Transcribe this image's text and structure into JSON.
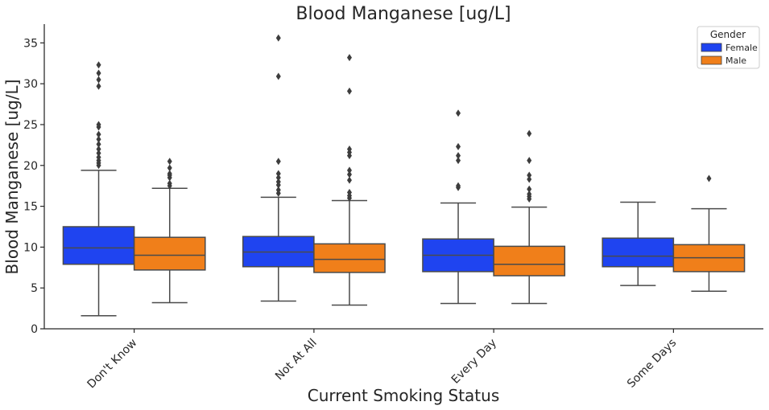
{
  "chart_data": {
    "type": "boxplot",
    "title": "Blood Manganese [ug/L]",
    "xlabel": "Current Smoking Status",
    "ylabel": "Blood Manganese [ug/L]",
    "ylim": [
      0,
      37.3
    ],
    "yticks": [
      0,
      5,
      10,
      15,
      20,
      25,
      30,
      35
    ],
    "categories": [
      "Don't Know",
      "Not At All",
      "Every Day",
      "Some Days"
    ],
    "legend": {
      "title": "Gender",
      "position": "top-right"
    },
    "series": [
      {
        "name": "Female",
        "color": "#1f44f0",
        "boxes": [
          {
            "whisker_low": 1.6,
            "q1": 7.9,
            "median": 9.9,
            "q3": 12.5,
            "whisker_high": 19.4,
            "outliers": [
              20.0,
              20.3,
              20.6,
              21.0,
              21.5,
              22.0,
              22.6,
              23.2,
              23.8,
              24.7,
              25.0,
              29.7,
              30.5,
              31.3,
              32.3
            ]
          },
          {
            "whisker_low": 3.4,
            "q1": 7.6,
            "median": 9.4,
            "q3": 11.3,
            "whisker_high": 16.1,
            "outliers": [
              16.6,
              17.0,
              17.6,
              18.0,
              18.5,
              19.0,
              20.5,
              30.9,
              35.6
            ]
          },
          {
            "whisker_low": 3.1,
            "q1": 7.0,
            "median": 9.0,
            "q3": 11.0,
            "whisker_high": 15.4,
            "outliers": [
              17.3,
              17.5,
              20.6,
              21.2,
              22.3,
              26.4
            ]
          },
          {
            "whisker_low": 5.3,
            "q1": 7.6,
            "median": 8.9,
            "q3": 11.1,
            "whisker_high": 15.5,
            "outliers": []
          }
        ]
      },
      {
        "name": "Male",
        "color": "#f07f1a",
        "boxes": [
          {
            "whisker_low": 3.2,
            "q1": 7.2,
            "median": 9.0,
            "q3": 11.2,
            "whisker_high": 17.2,
            "outliers": [
              17.5,
              17.8,
              18.5,
              18.8,
              19.0,
              19.7,
              20.5
            ]
          },
          {
            "whisker_low": 2.9,
            "q1": 6.9,
            "median": 8.5,
            "q3": 10.4,
            "whisker_high": 15.7,
            "outliers": [
              16.0,
              16.3,
              16.7,
              18.2,
              18.9,
              19.4,
              21.2,
              21.6,
              22.0,
              29.1,
              33.2
            ]
          },
          {
            "whisker_low": 3.1,
            "q1": 6.5,
            "median": 7.9,
            "q3": 10.1,
            "whisker_high": 14.9,
            "outliers": [
              15.9,
              16.2,
              16.5,
              17.1,
              18.3,
              18.8,
              20.6,
              23.9
            ]
          },
          {
            "whisker_low": 4.6,
            "q1": 7.0,
            "median": 8.7,
            "q3": 10.3,
            "whisker_high": 14.7,
            "outliers": [
              18.4
            ]
          }
        ]
      }
    ]
  }
}
